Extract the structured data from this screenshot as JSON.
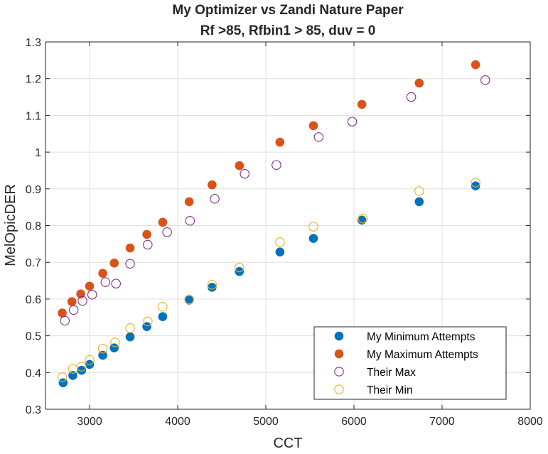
{
  "chart_data": {
    "type": "scatter",
    "title": "My Optimizer vs Zandi Nature Paper",
    "subtitle": "Rf >85, Rfbin1 > 85, duv = 0",
    "xlabel": "CCT",
    "ylabel": "MelOpicDER",
    "xlim": [
      2500,
      8000
    ],
    "ylim": [
      0.3,
      1.3
    ],
    "x_ticks": [
      3000,
      4000,
      5000,
      6000,
      7000,
      8000
    ],
    "y_ticks": [
      0.3,
      0.4,
      0.5,
      0.6,
      0.7,
      0.8,
      0.9,
      1,
      1.1,
      1.2,
      1.3
    ],
    "grid": true,
    "legend_position": "bottom-right",
    "series": [
      {
        "name": "My Minimum Attempts",
        "marker": "filled-circle",
        "color": "#0072BD",
        "points": [
          [
            2700,
            0.372
          ],
          [
            2810,
            0.392
          ],
          [
            2910,
            0.406
          ],
          [
            3000,
            0.422
          ],
          [
            3150,
            0.447
          ],
          [
            3280,
            0.467
          ],
          [
            3460,
            0.497
          ],
          [
            3650,
            0.525
          ],
          [
            3830,
            0.552
          ],
          [
            4130,
            0.597
          ],
          [
            4390,
            0.632
          ],
          [
            4700,
            0.675
          ],
          [
            5160,
            0.728
          ],
          [
            5540,
            0.765
          ],
          [
            6090,
            0.815
          ],
          [
            6740,
            0.865
          ],
          [
            7380,
            0.908
          ]
        ]
      },
      {
        "name": "My Maximum Attempts",
        "marker": "filled-circle",
        "color": "#D95319",
        "points": [
          [
            2690,
            0.562
          ],
          [
            2800,
            0.593
          ],
          [
            2900,
            0.614
          ],
          [
            3000,
            0.635
          ],
          [
            3150,
            0.67
          ],
          [
            3280,
            0.698
          ],
          [
            3460,
            0.739
          ],
          [
            3650,
            0.776
          ],
          [
            3830,
            0.809
          ],
          [
            4130,
            0.865
          ],
          [
            4390,
            0.911
          ],
          [
            4700,
            0.963
          ],
          [
            5160,
            1.027
          ],
          [
            5540,
            1.072
          ],
          [
            6090,
            1.13
          ],
          [
            6740,
            1.188
          ],
          [
            7380,
            1.238
          ]
        ]
      },
      {
        "name": "Their Max",
        "marker": "open-circle",
        "color": "#7E2F8E",
        "points": [
          [
            2720,
            0.541
          ],
          [
            2820,
            0.57
          ],
          [
            2920,
            0.595
          ],
          [
            3030,
            0.612
          ],
          [
            3180,
            0.646
          ],
          [
            3300,
            0.642
          ],
          [
            3460,
            0.696
          ],
          [
            3660,
            0.748
          ],
          [
            3880,
            0.782
          ],
          [
            4140,
            0.813
          ],
          [
            4420,
            0.873
          ],
          [
            4760,
            0.941
          ],
          [
            5120,
            0.965
          ],
          [
            5600,
            1.041
          ],
          [
            5980,
            1.083
          ],
          [
            6650,
            1.15
          ],
          [
            7490,
            1.196
          ]
        ]
      },
      {
        "name": "Their Min",
        "marker": "open-circle",
        "color": "#EDB120",
        "points": [
          [
            2690,
            0.387
          ],
          [
            2810,
            0.41
          ],
          [
            2910,
            0.416
          ],
          [
            3000,
            0.434
          ],
          [
            3150,
            0.465
          ],
          [
            3290,
            0.482
          ],
          [
            3460,
            0.521
          ],
          [
            3660,
            0.539
          ],
          [
            3830,
            0.579
          ],
          [
            4130,
            0.599
          ],
          [
            4390,
            0.639
          ],
          [
            4700,
            0.686
          ],
          [
            5160,
            0.755
          ],
          [
            5540,
            0.797
          ],
          [
            6100,
            0.819
          ],
          [
            6740,
            0.894
          ],
          [
            7380,
            0.917
          ]
        ]
      }
    ]
  }
}
